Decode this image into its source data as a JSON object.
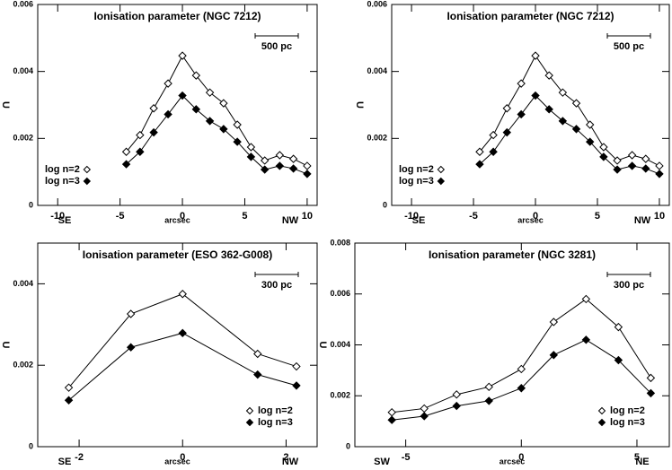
{
  "chart_data": [
    {
      "type": "line",
      "title": "Ionisation parameter (NGC 7212)",
      "y_label": "U",
      "x_label": "arcsec",
      "x_left_label": "SE",
      "x_right_label": "NW",
      "scale_label": "500 pc",
      "legend": "lower left",
      "x": [
        -4.5,
        -3.4,
        -2.3,
        -1.15,
        0,
        1.1,
        2.2,
        3.3,
        4.4,
        5.5,
        6.6,
        7.8,
        8.9,
        10
      ],
      "series": [
        {
          "name": "log n=2",
          "marker": "open",
          "color": "#000000",
          "values": [
            0.0016,
            0.0021,
            0.0029,
            0.00364,
            0.00447,
            0.00388,
            0.00337,
            0.00305,
            0.00241,
            0.00174,
            0.00134,
            0.0015,
            0.00139,
            0.00118
          ]
        },
        {
          "name": "log n=3",
          "marker": "filled",
          "color": "#000000",
          "values": [
            0.00123,
            0.0016,
            0.00218,
            0.00272,
            0.00328,
            0.00287,
            0.00252,
            0.00228,
            0.0019,
            0.00145,
            0.00107,
            0.00118,
            0.0011,
            0.00094
          ]
        }
      ],
      "xlim": [
        -11.6,
        10.8
      ],
      "xticks": [
        -10,
        -5,
        0,
        5,
        10
      ],
      "ylim": [
        0,
        0.006
      ],
      "yticks": [
        0,
        0.002,
        0.004,
        0.006
      ]
    },
    {
      "type": "line",
      "title": "Ionisation parameter (NGC 7212)",
      "y_label": "U",
      "x_label": "arcsec",
      "x_left_label": "SE",
      "x_right_label": "NW",
      "scale_label": "500 pc",
      "legend": "lower left",
      "x": [
        -4.5,
        -3.4,
        -2.3,
        -1.15,
        0,
        1.1,
        2.2,
        3.3,
        4.4,
        5.5,
        6.6,
        7.8,
        8.9,
        10
      ],
      "series": [
        {
          "name": "log n=2",
          "marker": "open",
          "color": "#000000",
          "values": [
            0.0016,
            0.0021,
            0.0029,
            0.00364,
            0.00447,
            0.00388,
            0.00337,
            0.00305,
            0.00241,
            0.00174,
            0.00134,
            0.0015,
            0.00139,
            0.00118
          ]
        },
        {
          "name": "log n=3",
          "marker": "filled",
          "color": "#000000",
          "values": [
            0.00123,
            0.0016,
            0.00218,
            0.00272,
            0.00328,
            0.00287,
            0.00252,
            0.00228,
            0.0019,
            0.00145,
            0.00107,
            0.00118,
            0.0011,
            0.00094
          ]
        }
      ],
      "xlim": [
        -11.6,
        10.8
      ],
      "xticks": [
        -10,
        -5,
        0,
        5,
        10
      ],
      "ylim": [
        0,
        0.006
      ],
      "yticks": [
        0,
        0.002,
        0.004,
        0.006
      ]
    },
    {
      "type": "line",
      "title": "Ionisation parameter (ESO 362-G008)",
      "y_label": "U",
      "x_label": "arcsec",
      "x_left_label": "SE",
      "x_right_label": "NW",
      "scale_label": "300 pc",
      "legend": "lower right",
      "x": [
        -2.2,
        -1.0,
        0,
        1.45,
        2.2
      ],
      "series": [
        {
          "name": "log n=2",
          "marker": "open",
          "color": "#000000",
          "values": [
            0.00145,
            0.00326,
            0.00375,
            0.00228,
            0.00197
          ]
        },
        {
          "name": "log n=3",
          "marker": "filled",
          "color": "#000000",
          "values": [
            0.00114,
            0.00244,
            0.00279,
            0.00177,
            0.0015
          ]
        }
      ],
      "xlim": [
        -2.8,
        2.6
      ],
      "xticks": [
        -2,
        0,
        2
      ],
      "ylim": [
        0,
        0.005
      ],
      "yticks": [
        0,
        0.002,
        0.004
      ]
    },
    {
      "type": "line",
      "title": "Ionisation parameter (NGC 3281)",
      "y_label": "U",
      "x_label": "arcsec",
      "x_left_label": "SW",
      "x_right_label": "NE",
      "scale_label": "300 pc",
      "legend": "lower right",
      "x": [
        -5.6,
        -4.2,
        -2.8,
        -1.4,
        0,
        1.4,
        2.8,
        4.2,
        5.6
      ],
      "series": [
        {
          "name": "log n=2",
          "marker": "open",
          "color": "#000000",
          "values": [
            0.00135,
            0.0015,
            0.00205,
            0.00235,
            0.00305,
            0.0049,
            0.0058,
            0.0047,
            0.0027
          ]
        },
        {
          "name": "log n=3",
          "marker": "filled",
          "color": "#000000",
          "values": [
            0.00105,
            0.0012,
            0.0016,
            0.0018,
            0.0023,
            0.0036,
            0.0042,
            0.0034,
            0.0021
          ]
        }
      ],
      "xlim": [
        -7.2,
        6.4
      ],
      "xticks": [
        -5,
        0,
        5
      ],
      "ylim": [
        0,
        0.008
      ],
      "yticks": [
        0,
        0.002,
        0.004,
        0.006,
        0.008
      ]
    }
  ]
}
